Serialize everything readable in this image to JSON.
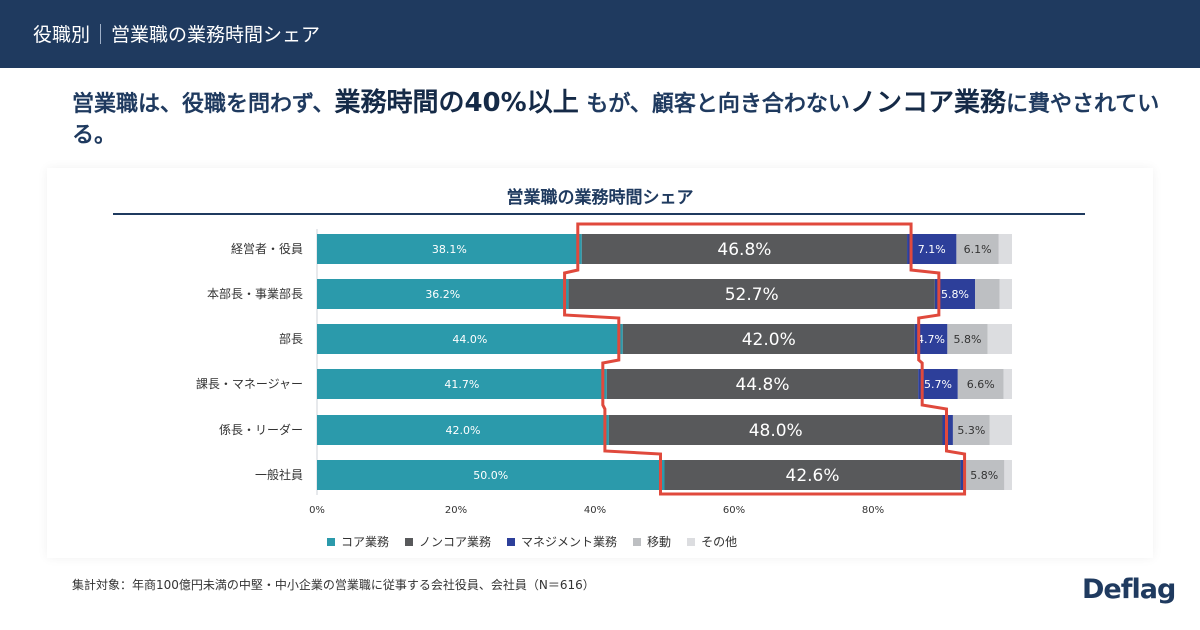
{
  "header": {
    "category": "役職別",
    "title": "営業職の業務時間シェア"
  },
  "headline": {
    "part1": "営業職は、役職を問わず、",
    "emph1": "業務時間の40%以上",
    "part2": " もが、顧客と向き合わない",
    "emph2": "ノンコア業務",
    "part3": "に費やされている。"
  },
  "note": "集計対象：年商100億円未満の中堅・中小企業の営業職に従事する会社役員、会社員（N＝616）",
  "logo": "Deflag",
  "colors": {
    "core": "#2b9aab",
    "noncore": "#58595b",
    "management": "#2d3f9a",
    "moving": "#bdbfc2",
    "other": "#dcdde0",
    "highlight": "#e0493c",
    "navy": "#1f3a5f"
  },
  "chart_data": {
    "type": "bar",
    "orientation": "horizontal",
    "stacked": true,
    "title": "営業職の業務時間シェア",
    "xlim": [
      0,
      100
    ],
    "xticks": [
      "0%",
      "20%",
      "40%",
      "60%",
      "80%"
    ],
    "categories": [
      "経営者・役員",
      "本部長・事業部長",
      "部長",
      "課長・マネージャー",
      "係長・リーダー",
      "一般社員"
    ],
    "series": [
      {
        "name": "コア業務",
        "values": [
          38.1,
          36.2,
          44.0,
          41.7,
          42.0,
          50.0
        ],
        "labels": [
          "38.1%",
          "36.2%",
          "44.0%",
          "41.7%",
          "42.0%",
          "50.0%"
        ]
      },
      {
        "name": "ノンコア業務",
        "values": [
          46.8,
          52.7,
          42.0,
          44.8,
          48.0,
          42.6
        ],
        "labels": [
          "46.8%",
          "52.7%",
          "42.0%",
          "44.8%",
          "48.0%",
          "42.6%"
        ]
      },
      {
        "name": "マネジメント業務",
        "values": [
          7.1,
          5.8,
          4.7,
          5.7,
          1.5,
          0.5
        ],
        "labels": [
          "7.1%",
          "5.8%",
          "4.7%",
          "5.7%",
          "",
          ""
        ]
      },
      {
        "name": "移動",
        "values": [
          6.1,
          3.5,
          5.8,
          6.6,
          5.3,
          5.8
        ],
        "labels": [
          "6.1%",
          "",
          "5.8%",
          "6.6%",
          "5.3%",
          "5.8%"
        ]
      },
      {
        "name": "その他",
        "values": [
          1.9,
          1.8,
          3.5,
          1.2,
          3.2,
          1.1
        ],
        "labels": [
          "",
          "",
          "",
          "",
          "",
          ""
        ]
      }
    ],
    "legend": "bottom",
    "highlight_series": "ノンコア業務"
  }
}
